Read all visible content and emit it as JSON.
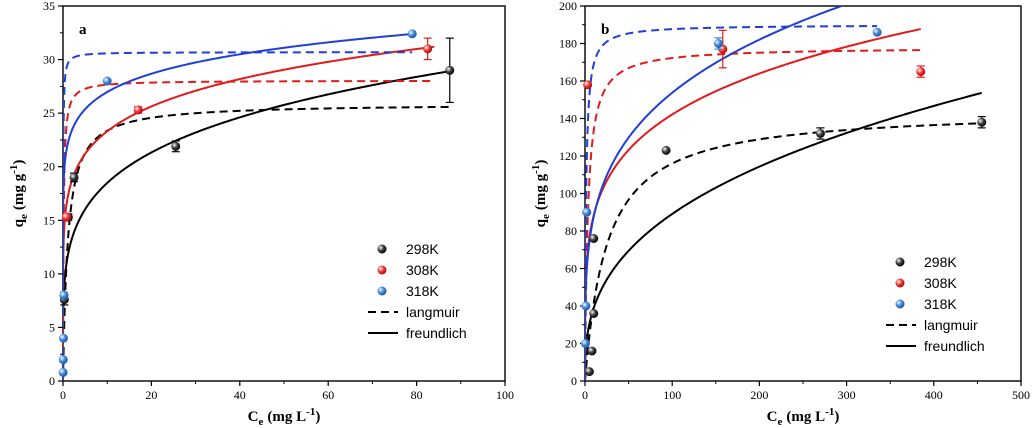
{
  "colors": {
    "k298": "#000000",
    "k308": "#e31a1c",
    "k318": "#1f3fd8",
    "k318_marker": "#3a86d8"
  },
  "chart_data": [
    {
      "type": "scatter",
      "panel_label": "a",
      "xlabel_main": "C",
      "xlabel_sub": "e",
      "xlabel_unit_pre": "(mg L",
      "xlabel_unit_sup": "-1",
      "xlabel_unit_post": ")",
      "ylabel_main": "q",
      "ylabel_sub": "e",
      "ylabel_unit_pre": "(mg g",
      "ylabel_unit_sup": "-1",
      "ylabel_unit_post": ")",
      "xlim": [
        0,
        100
      ],
      "ylim": [
        0,
        35
      ],
      "xticks": [
        0,
        20,
        40,
        60,
        80,
        100
      ],
      "yticks": [
        0,
        5,
        10,
        15,
        20,
        25,
        30,
        35
      ],
      "legend": {
        "position": "bottom-right",
        "entries": [
          "298K",
          "308K",
          "318K",
          "langmuir",
          "freundlich"
        ]
      },
      "series": [
        {
          "name": "298K",
          "points": [
            [
              0.3,
              7.6
            ],
            [
              1.2,
              15.3
            ],
            [
              2.5,
              19.0
            ],
            [
              25.5,
              21.9
            ],
            [
              87.5,
              29.0
            ]
          ],
          "errors": [
            0.5,
            0.3,
            0.4,
            0.5,
            3.0
          ],
          "langmuir": {
            "qm": 25.9,
            "KL": 0.92
          },
          "freundlich": {
            "KF": 11.5,
            "n": 4.85
          },
          "xmax_fit": 88
        },
        {
          "name": "308K",
          "points": [
            [
              0.8,
              15.3
            ],
            [
              17.0,
              25.3
            ],
            [
              82.5,
              31.0
            ]
          ],
          "errors": [
            0.3,
            0.3,
            1.0
          ],
          "langmuir": {
            "qm": 28.05,
            "KL": 7.0
          },
          "freundlich": {
            "KF": 17.0,
            "n": 7.3
          },
          "xmax_fit": 84
        },
        {
          "name": "318K",
          "points": [
            [
              0.02,
              0.8
            ],
            [
              0.05,
              2.0
            ],
            [
              0.1,
              4.0
            ],
            [
              0.2,
              8.0
            ],
            [
              10.0,
              28.0
            ],
            [
              79.0,
              32.4
            ]
          ],
          "errors": [
            0,
            0,
            0,
            0.3,
            0,
            0
          ],
          "langmuir": {
            "qm": 30.7,
            "KL": 25.0
          },
          "freundlich": {
            "KF": 22.0,
            "n": 11.3
          },
          "xmax_fit": 79
        }
      ]
    },
    {
      "type": "scatter",
      "panel_label": "b",
      "xlabel_main": "C",
      "xlabel_sub": "e",
      "xlabel_unit_pre": "(mg L",
      "xlabel_unit_sup": "-1",
      "xlabel_unit_post": ")",
      "ylabel_main": "q",
      "ylabel_sub": "e",
      "ylabel_unit_pre": "(mg g",
      "ylabel_unit_sup": "-1",
      "ylabel_unit_post": ")",
      "xlim": [
        0,
        500
      ],
      "ylim": [
        0,
        200
      ],
      "xticks": [
        0,
        100,
        200,
        300,
        400,
        500
      ],
      "yticks": [
        0,
        20,
        40,
        60,
        80,
        100,
        120,
        140,
        160,
        180,
        200
      ],
      "legend": {
        "position": "bottom-right",
        "entries": [
          "298K",
          "308K",
          "318K",
          "langmuir",
          "freundlich"
        ]
      },
      "series": [
        {
          "name": "298K",
          "points": [
            [
              5,
              5
            ],
            [
              8,
              16
            ],
            [
              10,
              36
            ],
            [
              10,
              76
            ],
            [
              93,
              123
            ],
            [
              270,
              132
            ],
            [
              455,
              138
            ]
          ],
          "errors": [
            0,
            0,
            0,
            0,
            0,
            3,
            3
          ],
          "langmuir": {
            "qm": 145,
            "KL": 0.04
          },
          "freundlich": {
            "KF": 17.0,
            "n": 2.78
          },
          "xmax_fit": 455
        },
        {
          "name": "308K",
          "points": [
            [
              3,
              158
            ],
            [
              158,
              177
            ],
            [
              385,
              165
            ]
          ],
          "errors": [
            0,
            10,
            3
          ],
          "langmuir": {
            "qm": 178,
            "KL": 0.3
          },
          "freundlich": {
            "KF": 55.0,
            "n": 4.85
          },
          "xmax_fit": 385
        },
        {
          "name": "318K",
          "points": [
            [
              0.5,
              20
            ],
            [
              1,
              40
            ],
            [
              2,
              90
            ],
            [
              153,
              180
            ],
            [
              335,
              186
            ]
          ],
          "errors": [
            0,
            0,
            0,
            3,
            0
          ],
          "langmuir": {
            "qm": 190,
            "KL": 0.8
          },
          "freundlich": {
            "KF": 50.0,
            "n": 4.1
          },
          "xmax_fit": 335
        }
      ]
    }
  ]
}
